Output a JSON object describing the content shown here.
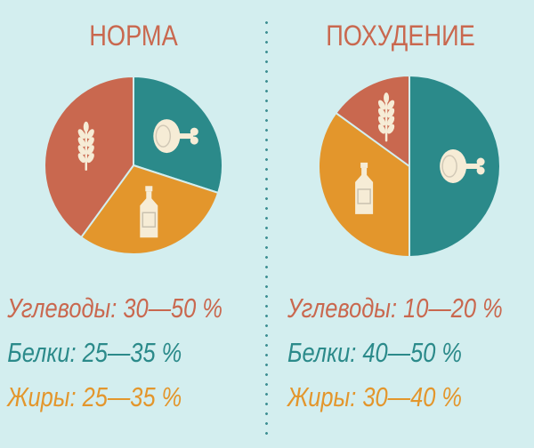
{
  "colors": {
    "carbs": "#c9684f",
    "protein": "#2b8a8a",
    "fat": "#e3962c",
    "background": "#d3eeef",
    "icon": "#f6ecd6"
  },
  "icons": {
    "carbs": "wheat-icon",
    "protein": "ham-icon",
    "fat": "bottle-icon"
  },
  "chart_data": [
    {
      "type": "pie",
      "title": "НОРМА",
      "slices": [
        {
          "key": "protein",
          "value": 30
        },
        {
          "key": "fat",
          "value": 30
        },
        {
          "key": "carbs",
          "value": 40
        }
      ],
      "legend": [
        {
          "key": "carbs",
          "text": "Углеводы: 30—50 %"
        },
        {
          "key": "protein",
          "text": "Белки: 25—35 %"
        },
        {
          "key": "fat",
          "text": "Жиры: 25—35 %"
        }
      ]
    },
    {
      "type": "pie",
      "title": "ПОХУДЕНИЕ",
      "slices": [
        {
          "key": "protein",
          "value": 50
        },
        {
          "key": "fat",
          "value": 35
        },
        {
          "key": "carbs",
          "value": 15
        }
      ],
      "legend": [
        {
          "key": "carbs",
          "text": "Углеводы: 10—20 %"
        },
        {
          "key": "protein",
          "text": "Белки: 40—50 %"
        },
        {
          "key": "fat",
          "text": "Жиры: 30—40 %"
        }
      ]
    }
  ]
}
